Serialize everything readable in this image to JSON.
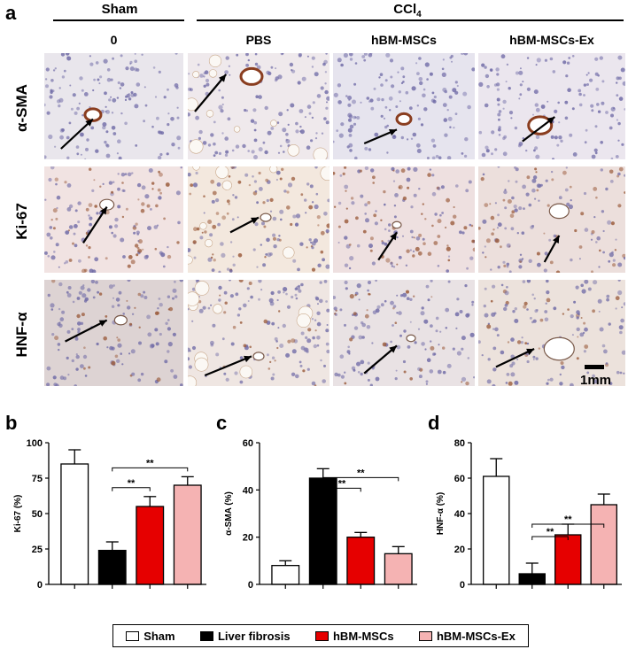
{
  "panel_a": {
    "letter": "a",
    "group_sham": "Sham",
    "group_ccl4": "CCl",
    "group_ccl4_sub": "4",
    "columns": [
      "0",
      "PBS",
      "hBM-MSCs",
      "hBM-MSCs-Ex"
    ],
    "rows": [
      "α-SMA",
      "Ki-67",
      "HNF-α"
    ],
    "scale_label": "1mm"
  },
  "legend": [
    {
      "label": "Sham",
      "color": "#ffffff"
    },
    {
      "label": "Liver fibrosis",
      "color": "#000000"
    },
    {
      "label": "hBM-MSCs",
      "color": "#e60000"
    },
    {
      "label": "hBM-MSCs-Ex",
      "color": "#f5b3b3"
    }
  ],
  "colors": {
    "sham": "#ffffff",
    "fibrosis": "#000000",
    "msc": "#e60000",
    "ex": "#f5b3b3"
  },
  "chart_data": [
    {
      "panel": "b",
      "type": "bar",
      "ylabel": "Ki-67 (%)",
      "ylim": [
        0,
        100
      ],
      "yticks": [
        "0",
        "25",
        "50",
        "75",
        "100"
      ],
      "ytick_values": [
        0,
        25,
        50,
        75,
        100
      ],
      "categories": [
        "Sham",
        "Liver fibrosis",
        "hBM-MSCs",
        "hBM-MSCs-Ex"
      ],
      "values": [
        85,
        24,
        55,
        70
      ],
      "errors": [
        10,
        6,
        7,
        6
      ],
      "significance": [
        {
          "from": 1,
          "to": 2,
          "label": "**"
        },
        {
          "from": 1,
          "to": 3,
          "label": "**"
        }
      ]
    },
    {
      "panel": "c",
      "type": "bar",
      "ylabel": "α-SMA (%)",
      "ylim": [
        0,
        60
      ],
      "yticks": [
        "0",
        "20",
        "40",
        "60"
      ],
      "ytick_values": [
        0,
        20,
        40,
        60
      ],
      "categories": [
        "Sham",
        "Liver fibrosis",
        "hBM-MSCs",
        "hBM-MSCs-Ex"
      ],
      "values": [
        8,
        45,
        20,
        13
      ],
      "errors": [
        2,
        4,
        2,
        3
      ],
      "significance": [
        {
          "from": 1,
          "to": 2,
          "label": "**"
        },
        {
          "from": 1,
          "to": 3,
          "label": "**"
        }
      ]
    },
    {
      "panel": "d",
      "type": "bar",
      "ylabel": "HNF-α (%)",
      "ylim": [
        0,
        80
      ],
      "yticks": [
        "0",
        "20",
        "40",
        "60",
        "80"
      ],
      "ytick_values": [
        0,
        20,
        40,
        60,
        80
      ],
      "categories": [
        "Sham",
        "Liver fibrosis",
        "hBM-MSCs",
        "hBM-MSCs-Ex"
      ],
      "values": [
        61,
        6,
        28,
        45
      ],
      "errors": [
        10,
        6,
        6,
        6
      ],
      "significance": [
        {
          "from": 1,
          "to": 2,
          "label": "**"
        },
        {
          "from": 1,
          "to": 3,
          "label": "**"
        }
      ]
    }
  ]
}
